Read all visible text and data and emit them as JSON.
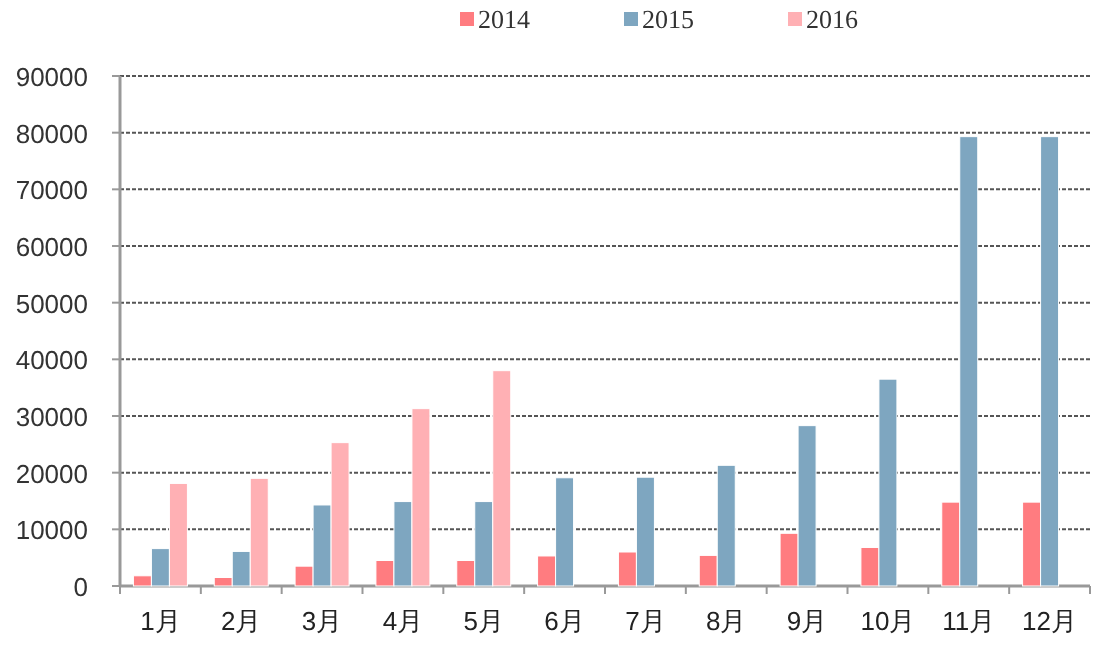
{
  "chart_data": {
    "type": "bar",
    "categories": [
      "1月",
      "2月",
      "3月",
      "4月",
      "5月",
      "6月",
      "7月",
      "8月",
      "9月",
      "10月",
      "11月",
      "12月"
    ],
    "series": [
      {
        "name": "2014",
        "color": "#ff7c80",
        "values": [
          1800,
          1500,
          3500,
          4500,
          4500,
          5300,
          6000,
          5400,
          9300,
          6800,
          14800,
          14800
        ]
      },
      {
        "name": "2015",
        "color": "#7ea6c0",
        "values": [
          6600,
          6100,
          14300,
          14900,
          14900,
          19100,
          19200,
          21300,
          28300,
          36500,
          79300,
          79300
        ]
      },
      {
        "name": "2016",
        "color": "#ffb0b4",
        "values": [
          18100,
          19000,
          25300,
          31300,
          38000,
          null,
          null,
          null,
          null,
          null,
          null,
          null
        ]
      }
    ],
    "ylim": [
      0,
      90000
    ],
    "yticks": [
      0,
      10000,
      20000,
      30000,
      40000,
      50000,
      60000,
      70000,
      80000,
      90000
    ],
    "grid": "y",
    "legend": "top"
  }
}
